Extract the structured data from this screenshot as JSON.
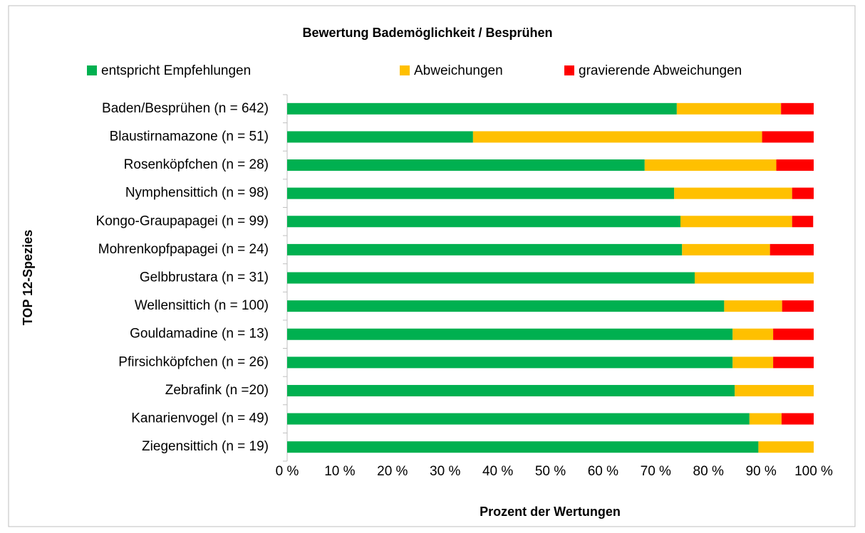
{
  "chart_data": {
    "type": "stacked_barh",
    "title": "Bewertung Bademöglichkeit / Besprühen",
    "x_label": "Prozent der Wertungen",
    "y_label": "TOP 12-Spezies",
    "categories": [
      "Baden/Besprühen (n = 642)",
      "Blaustirnamazone (n = 51)",
      "Rosenköpfchen (n = 28)",
      "Nymphensittich (n = 98)",
      "Kongo-Graupapagei (n = 99)",
      "Mohrenkopfpapagei (n = 24)",
      "Gelbbrustara (n = 31)",
      "Wellensittich (n = 100)",
      "Gouldamadine (n = 13)",
      "Pfirsichköpfchen (n = 26)",
      "Zebrafink  (n =20)",
      "Kanarienvogel (n = 49)",
      "Ziegensittich (n = 19)"
    ],
    "series": [
      {
        "name": "entspricht Empfehlungen",
        "color": "#00b050",
        "values": [
          74.0,
          35.3,
          67.9,
          73.5,
          74.7,
          75.0,
          77.4,
          83.0,
          84.6,
          84.6,
          85.0,
          87.8,
          89.5
        ]
      },
      {
        "name": "Abweichungen",
        "color": "#ffc000",
        "values": [
          19.8,
          54.9,
          25.0,
          22.4,
          21.2,
          16.7,
          22.6,
          11.0,
          7.7,
          7.7,
          15.0,
          6.1,
          10.5
        ]
      },
      {
        "name": "gravierende Abweichungen",
        "color": "#ff0000",
        "values": [
          6.2,
          9.8,
          7.1,
          4.1,
          4.0,
          8.3,
          0,
          6.0,
          7.7,
          7.7,
          0,
          6.1,
          0
        ]
      }
    ],
    "xlim": [
      0,
      100
    ],
    "xticks": [
      {
        "value": 0,
        "label": "0 %"
      },
      {
        "value": 10,
        "label": "10 %"
      },
      {
        "value": 20,
        "label": "20 %"
      },
      {
        "value": 30,
        "label": "30 %"
      },
      {
        "value": 40,
        "label": "40 %"
      },
      {
        "value": 50,
        "label": "50 %"
      },
      {
        "value": 60,
        "label": "60 %"
      },
      {
        "value": 70,
        "label": "70 %"
      },
      {
        "value": 80,
        "label": "80 %"
      },
      {
        "value": 90,
        "label": "90 %"
      },
      {
        "value": 100,
        "label": "100 %"
      }
    ],
    "legend": "top"
  }
}
